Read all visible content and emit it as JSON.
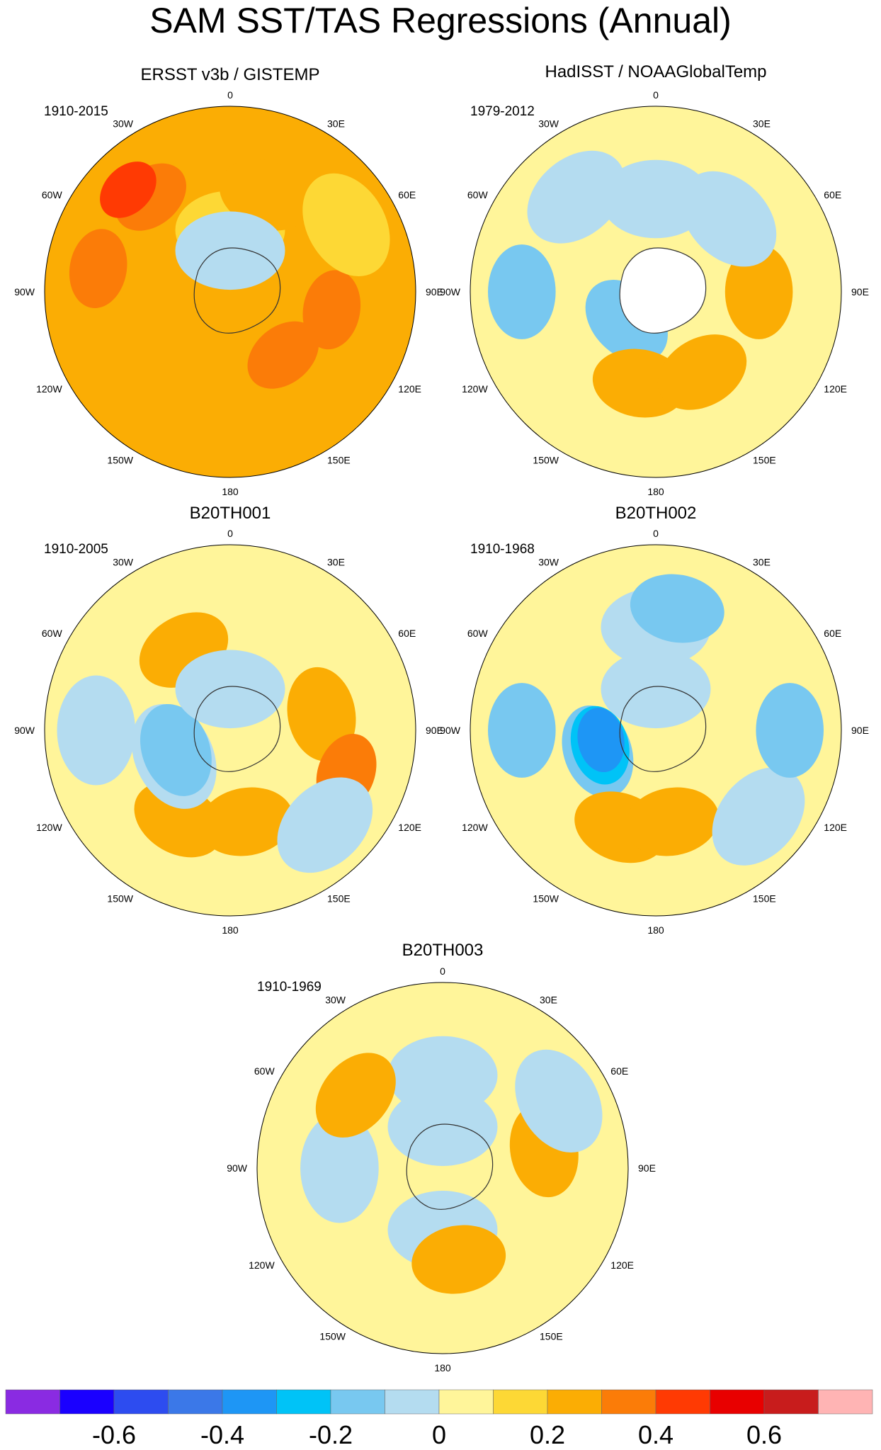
{
  "title": "SAM SST/TAS Regressions (Annual)",
  "longitude_labels": {
    "top": "0",
    "n30e": "30E",
    "n60e": "60E",
    "e90": "90E",
    "s120e": "120E",
    "s150e": "150E",
    "bottom": "180",
    "s150w": "150W",
    "s120w": "120W",
    "w90": "90W",
    "n60w": "60W",
    "n30w": "30W"
  },
  "colorbar": {
    "colors": [
      "#8a2be2",
      "#1a00ff",
      "#2d4cf0",
      "#3b78e8",
      "#1e96f5",
      "#00c3f7",
      "#78c8f0",
      "#b4dcf0",
      "#fff59a",
      "#fdd835",
      "#fbad04",
      "#fb7c08",
      "#ff3a03",
      "#e80000",
      "#c81c1c",
      "#ffb4b4"
    ],
    "labels": [
      "-0.6",
      "-0.4",
      "-0.2",
      "0",
      "0.2",
      "0.4",
      "0.6"
    ],
    "label_boundary_index": [
      2,
      4,
      6,
      8,
      10,
      12,
      14
    ]
  },
  "chart_data": [
    {
      "type": "heatmap",
      "title": "ERSST v3b / GISTEMP",
      "period": "1910-2015",
      "projection": "south-polar-stereographic",
      "background_value": 0.2,
      "patches": [
        {
          "lon": 0,
          "lat": -60,
          "value": 0.1
        },
        {
          "lon": -40,
          "lat": -30,
          "value": 0.3
        },
        {
          "lon": -80,
          "lat": -25,
          "value": 0.3
        },
        {
          "lon": 20,
          "lat": -40,
          "value": 0.2
        },
        {
          "lon": 100,
          "lat": -40,
          "value": 0.3
        },
        {
          "lon": 140,
          "lat": -50,
          "value": 0.3
        },
        {
          "lon": 0,
          "lat": -70,
          "value": -0.1
        },
        {
          "lon": -45,
          "lat": -20,
          "value": 0.4
        },
        {
          "lon": 60,
          "lat": -25,
          "value": 0.1
        }
      ]
    },
    {
      "type": "heatmap",
      "title": "HadISST / NOAAGlobalTemp",
      "period": "1979-2012",
      "projection": "south-polar-stereographic",
      "background_value": 0.0,
      "patches": [
        {
          "lon": 0,
          "lat": -45,
          "value": -0.1
        },
        {
          "lon": -40,
          "lat": -30,
          "value": -0.1
        },
        {
          "lon": -90,
          "lat": -25,
          "value": -0.2
        },
        {
          "lon": -135,
          "lat": -70,
          "value": -0.2
        },
        {
          "lon": 90,
          "lat": -40,
          "value": 0.2
        },
        {
          "lon": -170,
          "lat": -45,
          "value": 0.2
        },
        {
          "lon": 150,
          "lat": -45,
          "value": 0.2
        },
        {
          "lon": 45,
          "lat": -40,
          "value": -0.1
        }
      ]
    },
    {
      "type": "heatmap",
      "title": "B20TH001",
      "period": "1910-2005",
      "projection": "south-polar-stereographic",
      "background_value": 0.0,
      "patches": [
        {
          "lon": -30,
          "lat": -45,
          "value": 0.2
        },
        {
          "lon": 80,
          "lat": -45,
          "value": 0.2
        },
        {
          "lon": -150,
          "lat": -40,
          "value": 0.2
        },
        {
          "lon": 170,
          "lat": -45,
          "value": 0.2
        },
        {
          "lon": -115,
          "lat": -60,
          "value": -0.1
        },
        {
          "lon": -110,
          "lat": -62,
          "value": -0.2
        },
        {
          "lon": -90,
          "lat": -25,
          "value": -0.1
        },
        {
          "lon": 110,
          "lat": -30,
          "value": 0.3
        },
        {
          "lon": 0,
          "lat": -70,
          "value": -0.1
        },
        {
          "lon": 135,
          "lat": -25,
          "value": -0.1
        }
      ]
    },
    {
      "type": "heatmap",
      "title": "B20TH002",
      "period": "1910-1968",
      "projection": "south-polar-stereographic",
      "background_value": 0.0,
      "patches": [
        {
          "lon": -110,
          "lat": -60,
          "value": -0.2
        },
        {
          "lon": -105,
          "lat": -62,
          "value": -0.3
        },
        {
          "lon": -100,
          "lat": -63,
          "value": -0.4
        },
        {
          "lon": -90,
          "lat": -25,
          "value": -0.2
        },
        {
          "lon": 0,
          "lat": -40,
          "value": -0.1
        },
        {
          "lon": 10,
          "lat": -30,
          "value": -0.2
        },
        {
          "lon": 0,
          "lat": -70,
          "value": -0.1
        },
        {
          "lon": -160,
          "lat": -40,
          "value": 0.2
        },
        {
          "lon": 170,
          "lat": -45,
          "value": 0.2
        },
        {
          "lon": 130,
          "lat": -25,
          "value": -0.1
        },
        {
          "lon": 90,
          "lat": -25,
          "value": -0.2
        }
      ]
    },
    {
      "type": "heatmap",
      "title": "B20TH003",
      "period": "1910-1969",
      "projection": "south-polar-stereographic",
      "background_value": 0.0,
      "patches": [
        {
          "lon": 0,
          "lat": -45,
          "value": -0.1
        },
        {
          "lon": -90,
          "lat": -40,
          "value": -0.1
        },
        {
          "lon": 180,
          "lat": -60,
          "value": -0.1
        },
        {
          "lon": 0,
          "lat": -70,
          "value": -0.1
        },
        {
          "lon": 80,
          "lat": -40,
          "value": 0.2
        },
        {
          "lon": 170,
          "lat": -45,
          "value": 0.2
        },
        {
          "lon": -50,
          "lat": -35,
          "value": 0.2
        },
        {
          "lon": 60,
          "lat": -25,
          "value": -0.1
        }
      ]
    }
  ]
}
